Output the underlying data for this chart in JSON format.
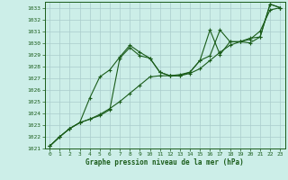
{
  "title": "Graphe pression niveau de la mer (hPa)",
  "bg_color": "#cceee8",
  "grid_color": "#aacccc",
  "line_color": "#1a5c1a",
  "xlim": [
    -0.5,
    23.5
  ],
  "ylim": [
    1021,
    1033.5
  ],
  "xticks": [
    0,
    1,
    2,
    3,
    4,
    5,
    6,
    7,
    8,
    9,
    10,
    11,
    12,
    13,
    14,
    15,
    16,
    17,
    18,
    19,
    20,
    21,
    22,
    23
  ],
  "yticks": [
    1021,
    1022,
    1023,
    1024,
    1025,
    1026,
    1027,
    1028,
    1029,
    1030,
    1031,
    1032,
    1033
  ],
  "line1_x": [
    0,
    1,
    2,
    3,
    4,
    5,
    6,
    7,
    8,
    9,
    10,
    11,
    12,
    13,
    14,
    15,
    16,
    17,
    18,
    19,
    20,
    21,
    22,
    23
  ],
  "line1_y": [
    1021.2,
    1022.0,
    1022.7,
    1023.2,
    1023.5,
    1023.9,
    1024.4,
    1025.0,
    1025.7,
    1026.4,
    1027.1,
    1027.2,
    1027.2,
    1027.2,
    1027.4,
    1027.8,
    1028.5,
    1029.2,
    1029.8,
    1030.1,
    1030.3,
    1031.0,
    1032.8,
    1033.0
  ],
  "line2_x": [
    0,
    1,
    2,
    3,
    4,
    5,
    6,
    7,
    8,
    9,
    10,
    11,
    12,
    13,
    14,
    15,
    16,
    17,
    18,
    19,
    20,
    21,
    22,
    23
  ],
  "line2_y": [
    1021.2,
    1022.0,
    1022.7,
    1023.2,
    1025.3,
    1027.1,
    1027.7,
    1028.8,
    1029.8,
    1029.2,
    1028.7,
    1027.5,
    1027.2,
    1027.2,
    1027.5,
    1028.5,
    1031.1,
    1029.0,
    1030.1,
    1030.1,
    1030.4,
    1030.5,
    1033.3,
    1033.0
  ],
  "line3_x": [
    0,
    1,
    2,
    3,
    4,
    5,
    6,
    7,
    8,
    9,
    10,
    11,
    12,
    13,
    14,
    15,
    16,
    17,
    18,
    19,
    20,
    21,
    22,
    23
  ],
  "line3_y": [
    1021.2,
    1022.0,
    1022.7,
    1023.2,
    1023.5,
    1023.8,
    1024.3,
    1028.7,
    1029.6,
    1028.9,
    1028.7,
    1027.5,
    1027.2,
    1027.3,
    1027.5,
    1028.5,
    1028.9,
    1031.1,
    1030.1,
    1030.1,
    1030.0,
    1030.5,
    1033.3,
    1033.0
  ]
}
